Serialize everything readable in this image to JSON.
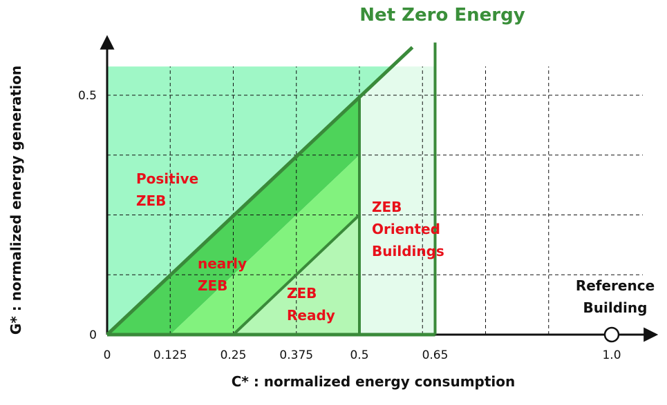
{
  "diagram": {
    "title": "Net Zero Energy",
    "x_axis_label": "C* : normalized  energy consumption",
    "y_axis_label": "G* : normalized  energy generation",
    "xticks": [
      0,
      0.125,
      0.25,
      0.375,
      0.5,
      0.65,
      {
        "value": 1,
        "label": "1.0"
      }
    ],
    "yticks": [
      0,
      0.5
    ],
    "regions": [
      {
        "lines": [
          "Positive",
          "ZEB"
        ]
      },
      {
        "lines": [
          "nearly",
          "ZEB"
        ]
      },
      {
        "lines": [
          "ZEB",
          "Ready"
        ]
      },
      {
        "lines": [
          "ZEB",
          "Oriented",
          "Buildings"
        ]
      }
    ],
    "reference": {
      "lines": [
        "Reference",
        "Building"
      ]
    }
  }
}
